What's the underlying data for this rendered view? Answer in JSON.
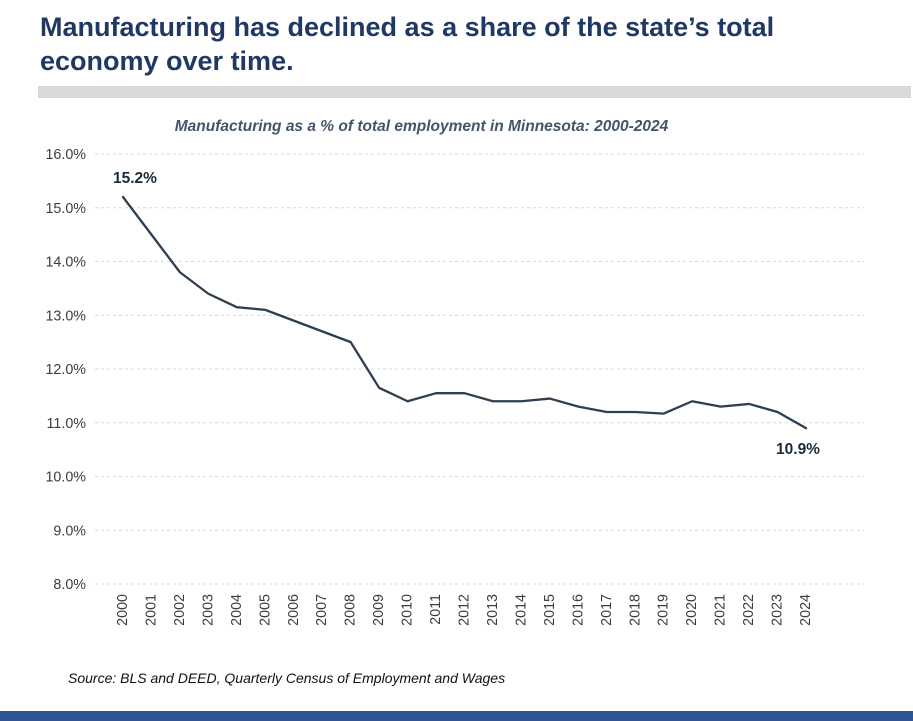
{
  "page": {
    "headline": "Manufacturing has declined as a share of the state’s total economy over time.",
    "source": "Source: BLS and DEED, Quarterly Census of Employment and Wages"
  },
  "colors": {
    "headline": "#1f3864",
    "subtitle": "#44546a",
    "line": "#2f3f51",
    "grid": "#d8d8d8",
    "tick": "#3d3d3d",
    "divider": "#d9d9d9",
    "footer_bar": "#2f5597",
    "data_label": "#1b2a3a"
  },
  "chart_data": {
    "type": "line",
    "title": "Manufacturing as a % of total employment in Minnesota: 2000-2024",
    "x": [
      "2000",
      "2001",
      "2002",
      "2003",
      "2004",
      "2005",
      "2006",
      "2007",
      "2008",
      "2009",
      "2010",
      "2011",
      "2012",
      "2013",
      "2014",
      "2015",
      "2016",
      "2017",
      "2018",
      "2019",
      "2020",
      "2021",
      "2022",
      "2023",
      "2024"
    ],
    "values": [
      15.2,
      14.5,
      13.8,
      13.4,
      13.15,
      13.1,
      12.9,
      12.7,
      12.5,
      11.65,
      11.4,
      11.55,
      11.55,
      11.4,
      11.4,
      11.45,
      11.3,
      11.2,
      11.2,
      11.17,
      11.4,
      11.3,
      11.35,
      11.2,
      10.9
    ],
    "ylim": [
      8.0,
      16.0
    ],
    "ytick_step": 1.0,
    "ytick_format": "percent-one-decimal",
    "xlabel": "",
    "ylabel": "",
    "grid": "dashed-horizontal",
    "legend": "none",
    "start_label": "15.2%",
    "end_label": "10.9%"
  }
}
